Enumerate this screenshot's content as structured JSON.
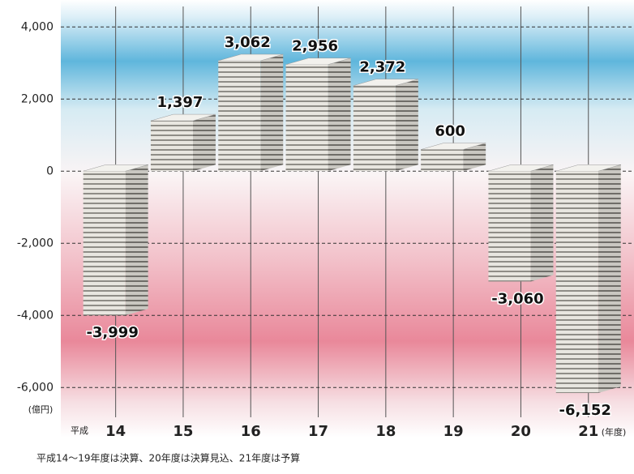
{
  "chart_data": {
    "type": "bar",
    "categories": [
      "14",
      "15",
      "16",
      "17",
      "18",
      "19",
      "20",
      "21"
    ],
    "values": [
      -3999,
      1397,
      3062,
      2956,
      2372,
      600,
      -3060,
      -6152
    ],
    "value_labels": [
      "-3,999",
      "1,397",
      "3,062",
      "2,956",
      "2,372",
      "600",
      "-3,060",
      "-6,152"
    ],
    "ylim": [
      -6600,
      4500
    ],
    "yticks": [
      {
        "value": 4000,
        "label": "4,000"
      },
      {
        "value": 2000,
        "label": "2,000"
      },
      0,
      {
        "value": -2000,
        "label": "-2,000"
      },
      {
        "value": -4000,
        "label": "-4,000"
      },
      {
        "value": -6000,
        "label": "-6,000"
      }
    ],
    "y_unit": "(億円)",
    "x_prefix": "平成",
    "x_suffix": "(年度)",
    "note": "平成14〜19年度は決算、20年度は決算見込、21年度は予算",
    "color": "#c8c6c0",
    "grid": true
  }
}
